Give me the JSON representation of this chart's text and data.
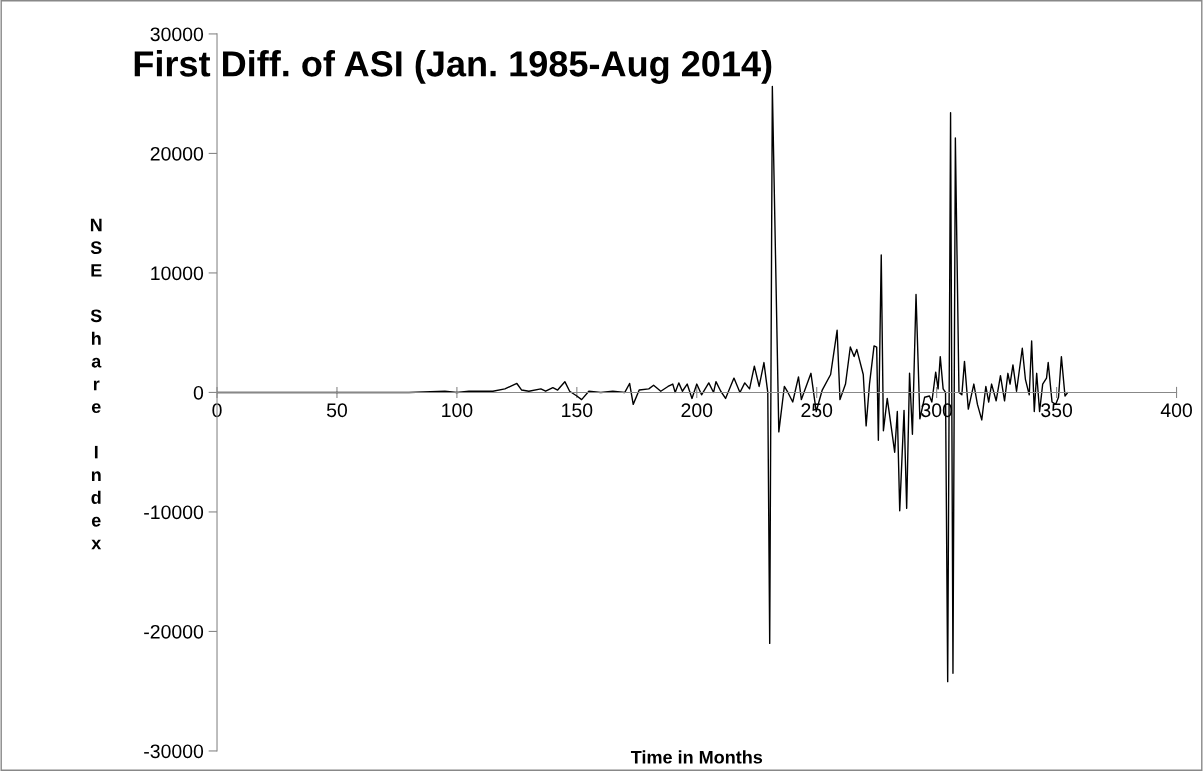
{
  "chart_data": {
    "type": "line",
    "title": "First Diff. of ASI (Jan. 1985-Aug 2014)",
    "xlabel": "Time in Months",
    "ylabel": "NSE Share Index",
    "x": [
      0,
      20,
      40,
      60,
      80,
      95,
      100,
      105,
      110,
      115,
      120,
      125,
      127,
      130,
      135,
      137,
      140,
      142,
      145,
      147,
      150,
      152,
      155,
      160,
      165,
      170,
      172,
      173.5,
      176,
      180,
      182,
      185,
      188,
      190,
      191,
      192.5,
      194,
      196,
      198,
      200,
      202,
      205,
      207,
      208,
      210,
      212,
      215.5,
      218,
      220,
      222,
      224,
      226,
      228,
      229.6,
      230.4,
      231.5,
      234.2,
      236.5,
      238,
      240,
      242.4,
      243.6,
      247.6,
      249.8,
      252.3,
      255.8,
      258.5,
      259.7,
      262,
      264,
      265.6,
      266.7,
      269.4,
      270.6,
      272,
      273.9,
      275,
      275.7,
      276.9,
      277.8,
      279.4,
      281,
      282.5,
      283.6,
      284.6,
      286.4,
      287.5,
      288.7,
      289.9,
      291.4,
      293,
      295,
      297,
      298,
      299.6,
      300.6,
      301.5,
      302.7,
      303.7,
      304.6,
      305.8,
      306.8,
      307.8,
      309.3,
      310.5,
      311.6,
      313.2,
      315.5,
      317,
      318.8,
      320.5,
      321.7,
      322.9,
      324.8,
      326.6,
      328.3,
      329.7,
      330.6,
      331.8,
      333.3,
      335.7,
      337,
      338.6,
      339.6,
      340.7,
      341.7,
      342.9,
      344.2,
      345.8,
      346.5,
      348.1,
      349.6,
      350.8,
      352,
      353.5,
      354.7
    ],
    "series": [
      {
        "color": "#000000",
        "values": [
          0,
          0,
          0,
          0,
          0,
          100,
          0,
          100,
          100,
          100,
          300,
          750,
          200,
          100,
          300,
          100,
          400,
          200,
          900,
          100,
          -300,
          -600,
          100,
          0,
          100,
          0,
          750,
          -1000,
          200,
          300,
          600,
          100,
          500,
          700,
          0,
          800,
          100,
          700,
          -500,
          700,
          -200,
          800,
          0,
          900,
          100,
          -500,
          1200,
          0,
          800,
          300,
          2200,
          500,
          2500,
          0,
          -21000,
          25600,
          -3300,
          500,
          0,
          -800,
          1300,
          -600,
          1600,
          -1600,
          200,
          1500,
          5200,
          -600,
          700,
          3800,
          3000,
          3600,
          1500,
          -2800,
          700,
          3900,
          3800,
          -4000,
          11500,
          -3200,
          -500,
          -2800,
          -5000,
          -1600,
          -9900,
          -1500,
          -9700,
          1600,
          -3500,
          8200,
          -2200,
          -400,
          -300,
          -800,
          1700,
          300,
          3000,
          300,
          0,
          -24200,
          23400,
          -23500,
          21300,
          0,
          -200,
          2600,
          -1400,
          700,
          -1000,
          -2300,
          500,
          -800,
          700,
          -700,
          1400,
          -700,
          1600,
          700,
          2300,
          100,
          3700,
          1100,
          -200,
          4300,
          -1600,
          1600,
          -1600,
          700,
          1200,
          2500,
          -800,
          -1000,
          -400,
          3000,
          -300,
          0
        ]
      }
    ],
    "xlim": [
      0,
      400
    ],
    "xticks": [
      0,
      50,
      100,
      150,
      200,
      250,
      300,
      350,
      400
    ],
    "ylim": [
      -30000,
      30000
    ],
    "yticks": [
      -30000,
      -20000,
      -10000,
      0,
      10000,
      20000,
      30000
    ],
    "grid": false,
    "marker": "none",
    "line_style": "solid"
  }
}
